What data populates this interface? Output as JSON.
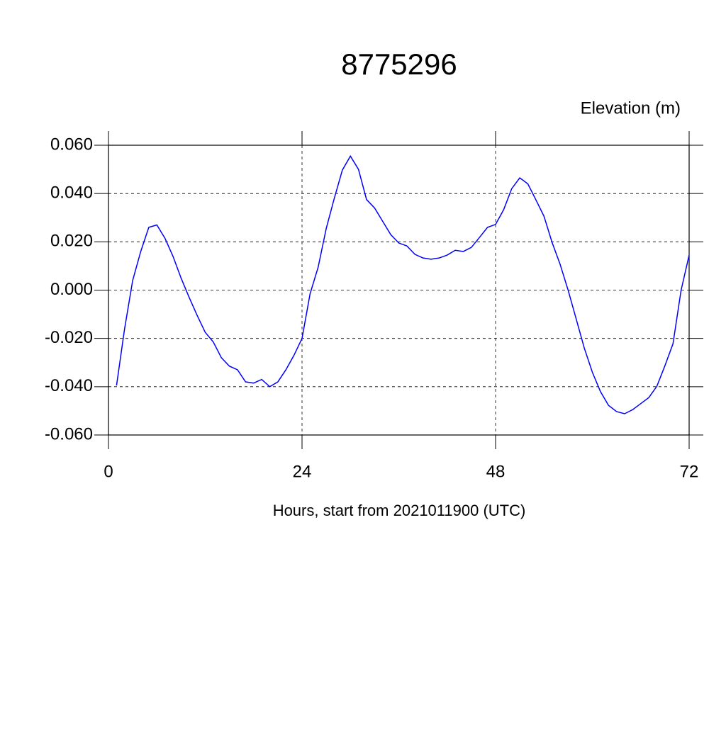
{
  "chart_data": {
    "type": "line",
    "title": "8775296",
    "ylabel": "Elevation (m)",
    "xlabel": "Hours, start from 2021011900 (UTC)",
    "x": [
      1,
      2,
      3,
      4,
      5,
      6,
      7,
      8,
      9,
      10,
      11,
      12,
      13,
      14,
      15,
      16,
      17,
      18,
      19,
      20,
      21,
      22,
      23,
      24,
      25,
      26,
      27,
      28,
      29,
      30,
      31,
      32,
      33,
      34,
      35,
      36,
      37,
      38,
      39,
      40,
      41,
      42,
      43,
      44,
      45,
      46,
      47,
      48,
      49,
      50,
      51,
      52,
      53,
      54,
      55,
      56,
      57,
      58,
      59,
      60,
      61,
      62,
      63,
      64,
      65,
      66,
      67,
      68,
      69,
      70,
      71,
      72
    ],
    "series": [
      {
        "color": "#0000ff",
        "values": [
          -0.0395,
          -0.016,
          0.004,
          0.016,
          0.026,
          0.027,
          0.0215,
          0.014,
          0.005,
          -0.003,
          -0.0105,
          -0.0175,
          -0.0215,
          -0.028,
          -0.0315,
          -0.033,
          -0.038,
          -0.0385,
          -0.037,
          -0.04,
          -0.038,
          -0.033,
          -0.027,
          -0.02,
          -0.0015,
          0.0095,
          0.0255,
          0.038,
          0.0497,
          0.0555,
          0.05,
          0.0375,
          0.034,
          0.0285,
          0.023,
          0.0195,
          0.0183,
          0.0148,
          0.0133,
          0.0128,
          0.0133,
          0.0145,
          0.0165,
          0.016,
          0.0177,
          0.0218,
          0.026,
          0.0272,
          0.0333,
          0.042,
          0.0465,
          0.044,
          0.0374,
          0.0306,
          0.0198,
          0.0107,
          -0.0001,
          -0.012,
          -0.024,
          -0.034,
          -0.042,
          -0.0477,
          -0.0503,
          -0.0512,
          -0.0495,
          -0.047,
          -0.0445,
          -0.0398,
          -0.0313,
          -0.0222,
          -0.0001,
          0.0145
        ]
      }
    ],
    "xlim": [
      0,
      72
    ],
    "xticks": [
      0,
      24,
      48,
      72
    ],
    "ylim": [
      -0.06,
      0.06
    ],
    "yticks": [
      {
        "value": -0.06,
        "label": "-0.060"
      },
      {
        "value": -0.04,
        "label": "-0.040"
      },
      {
        "value": -0.02,
        "label": "-0.020"
      },
      {
        "value": 0,
        "label": "0.000"
      },
      {
        "value": 0.02,
        "label": "0.020"
      },
      {
        "value": 0.04,
        "label": "0.040"
      },
      {
        "value": 0.06,
        "label": "0.060"
      }
    ],
    "grid": true
  }
}
